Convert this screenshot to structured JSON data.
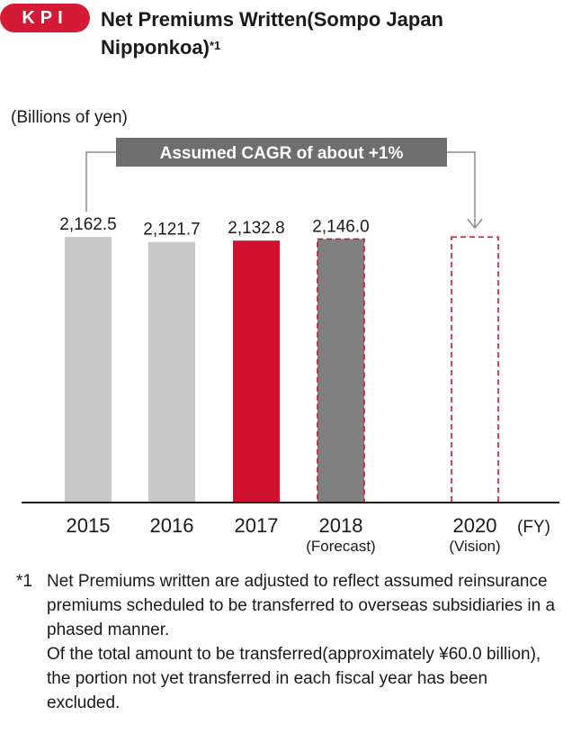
{
  "header": {
    "badge": "KPI",
    "title": "Net Premiums Written(Sompo Japan Nipponkoa)",
    "title_sup": "*1"
  },
  "chart_data": {
    "type": "bar",
    "unit_label": "(Billions of yen)",
    "x_unit": "(FY)",
    "annotation": "Assumed CAGR of about +1%",
    "categories": [
      "2015",
      "2016",
      "2017",
      "2018",
      "2020"
    ],
    "sublabels": [
      "",
      "",
      "",
      "(Forecast)",
      "(Vision)"
    ],
    "values": [
      2162.5,
      2121.7,
      2132.8,
      2146.0,
      null
    ],
    "value_labels": [
      "2,162.5",
      "2,121.7",
      "2,132.8",
      "2,146.0",
      ""
    ],
    "styles": [
      "actual",
      "actual",
      "highlight",
      "forecast",
      "vision"
    ],
    "colors": {
      "actual": "#c8c8c8",
      "highlight": "#d0102f",
      "forecast": "#808080",
      "dashed_border": "#d0102f",
      "annotation_box": "#6e6e6e",
      "arrow": "#8c8c8c"
    },
    "ylim": [
      0,
      2200
    ],
    "grid": false
  },
  "footnote": {
    "mark": "*1",
    "line1": "Net Premiums written are adjusted to reflect assumed reinsurance premiums scheduled to be transferred to overseas subsidiaries in a phased manner.",
    "line2": "Of the total amount to be transferred(approximately ¥60.0 billion), the portion not yet transferred in each fiscal year has been excluded."
  }
}
